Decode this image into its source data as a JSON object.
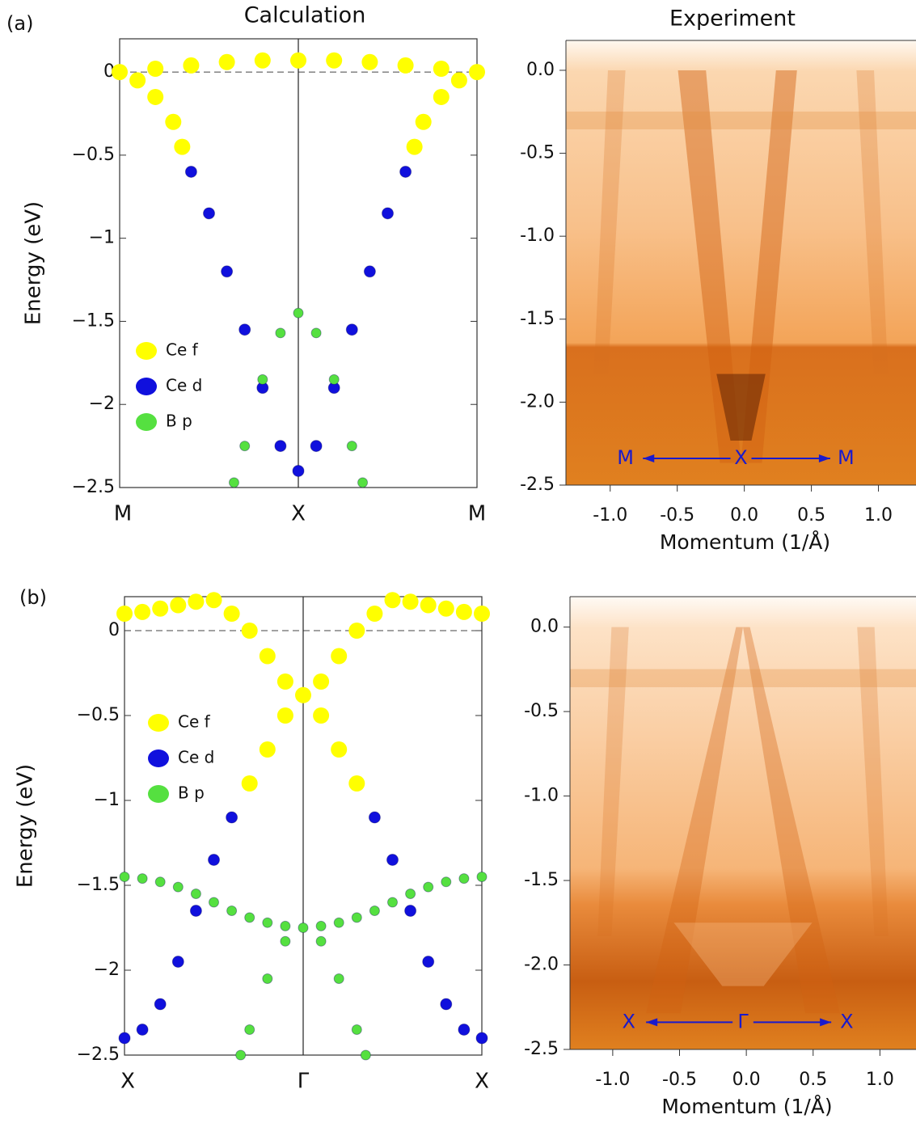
{
  "panel_labels": [
    "(a)",
    "(b)"
  ],
  "column_titles": [
    "Calculation",
    "Experiment"
  ],
  "chart_data": [
    {
      "type": "scatter",
      "ylabel": "Energy (eV)",
      "xlim": [
        0,
        2
      ],
      "ylim": [
        -2.5,
        0.2
      ],
      "xticks": [
        {
          "value": 0,
          "label": "M"
        },
        {
          "value": 1,
          "label": "X"
        },
        {
          "value": 2,
          "label": "M"
        }
      ],
      "yticks": [
        {
          "value": -2.5,
          "label": "−2.5"
        },
        {
          "value": -2,
          "label": "−2"
        },
        {
          "value": -1.5,
          "label": "−1.5"
        },
        {
          "value": -1,
          "label": "−1"
        },
        {
          "value": -0.5,
          "label": "−0.5"
        },
        0
      ],
      "fermi_line": true,
      "series": [
        {
          "name": "Ce f",
          "color": "#ffff00",
          "x": [
            0,
            0.2,
            0.4,
            0.6,
            0.8,
            1.0,
            1.2,
            1.4,
            1.6,
            1.8,
            2.0,
            0.1,
            0.2,
            0.3,
            0.35,
            1.65,
            1.7,
            1.8,
            1.9
          ],
          "values": [
            0,
            0.02,
            0.04,
            0.06,
            0.07,
            0.07,
            0.07,
            0.06,
            0.04,
            0.02,
            0,
            -0.05,
            -0.15,
            -0.3,
            -0.45,
            -0.45,
            -0.3,
            -0.15,
            -0.05
          ]
        },
        {
          "name": "Ce d",
          "color": "#1010dd",
          "x": [
            0.4,
            0.5,
            0.6,
            0.7,
            0.8,
            0.9,
            1.0,
            1.1,
            1.2,
            1.3,
            1.4,
            1.5,
            1.6
          ],
          "values": [
            -0.6,
            -0.85,
            -1.2,
            -1.55,
            -1.9,
            -2.25,
            -2.4,
            -2.25,
            -1.9,
            -1.55,
            -1.2,
            -0.85,
            -0.6
          ]
        },
        {
          "name": "B p",
          "color": "#55e040",
          "x": [
            0.64,
            0.7,
            0.8,
            0.9,
            1.0,
            1.1,
            1.2,
            1.3,
            1.36
          ],
          "values": [
            -2.47,
            -2.25,
            -1.85,
            -1.57,
            -1.45,
            -1.57,
            -1.85,
            -2.25,
            -2.47
          ]
        }
      ]
    },
    {
      "type": "image",
      "xlabel": "Momentum (1/Å)",
      "xlim": [
        -1.33,
        1.28
      ],
      "ylim": [
        -2.5,
        0.18
      ],
      "xticks": [
        {
          "value": -1,
          "label": "-1.0"
        },
        -0.5,
        {
          "value": 0,
          "label": "0.0"
        },
        0.5,
        {
          "value": 1,
          "label": "1.0"
        }
      ],
      "yticks": [
        {
          "value": -2.5,
          "label": "-2.5"
        },
        {
          "value": -2,
          "label": "-2.0"
        },
        -1.5,
        {
          "value": -1,
          "label": "-1.0"
        },
        -0.5,
        {
          "value": 0,
          "label": "0.0"
        }
      ],
      "annotations": [
        "M",
        "X",
        "M"
      ]
    },
    {
      "type": "scatter",
      "ylabel": "Energy (eV)",
      "xlim": [
        0,
        2
      ],
      "ylim": [
        -2.5,
        0.2
      ],
      "xticks": [
        {
          "value": 0,
          "label": "X"
        },
        {
          "value": 1,
          "label": "Γ"
        },
        {
          "value": 2,
          "label": "X"
        }
      ],
      "yticks": [
        {
          "value": -2.5,
          "label": "−2.5"
        },
        {
          "value": -2,
          "label": "−2"
        },
        {
          "value": -1.5,
          "label": "−1.5"
        },
        {
          "value": -1,
          "label": "−1"
        },
        {
          "value": -0.5,
          "label": "−0.5"
        },
        0
      ],
      "fermi_line": true,
      "series": [
        {
          "name": "Ce f",
          "color": "#ffff00",
          "x": [
            0,
            0.1,
            0.2,
            0.3,
            0.4,
            0.5,
            0.6,
            0.7,
            0.8,
            0.9,
            1.0,
            0.9,
            0.8,
            0.7,
            1.1,
            1.2,
            1.3,
            1.1,
            1.2,
            1.3,
            1.4,
            1.5,
            1.6,
            1.7,
            1.8,
            1.9,
            2.0
          ],
          "values": [
            0.1,
            0.11,
            0.13,
            0.15,
            0.17,
            0.18,
            0.1,
            0,
            -0.15,
            -0.3,
            -0.38,
            -0.5,
            -0.7,
            -0.9,
            -0.5,
            -0.7,
            -0.9,
            -0.3,
            -0.15,
            0,
            0.1,
            0.18,
            0.17,
            0.15,
            0.13,
            0.11,
            0.1
          ]
        },
        {
          "name": "Ce d",
          "color": "#1010dd",
          "x": [
            0,
            0.1,
            0.2,
            0.3,
            0.4,
            0.5,
            0.6,
            1.4,
            1.5,
            1.6,
            1.7,
            1.8,
            1.9,
            2.0
          ],
          "values": [
            -2.4,
            -2.35,
            -2.2,
            -1.95,
            -1.65,
            -1.35,
            -1.1,
            -1.1,
            -1.35,
            -1.65,
            -1.95,
            -2.2,
            -2.35,
            -2.4
          ]
        },
        {
          "name": "B p",
          "color": "#55e040",
          "x": [
            0,
            0.1,
            0.2,
            0.3,
            0.4,
            0.5,
            0.6,
            0.7,
            0.8,
            0.9,
            1.0,
            1.1,
            1.2,
            1.3,
            1.4,
            1.5,
            1.6,
            1.7,
            1.8,
            1.9,
            2.0,
            0.65,
            0.7,
            0.8,
            0.9,
            1.1,
            1.2,
            1.3,
            1.35
          ],
          "values": [
            -1.45,
            -1.46,
            -1.48,
            -1.51,
            -1.55,
            -1.6,
            -1.65,
            -1.69,
            -1.72,
            -1.74,
            -1.75,
            -1.74,
            -1.72,
            -1.69,
            -1.65,
            -1.6,
            -1.55,
            -1.51,
            -1.48,
            -1.46,
            -1.45,
            -2.5,
            -2.35,
            -2.05,
            -1.83,
            -1.83,
            -2.05,
            -2.35,
            -2.5
          ]
        }
      ]
    },
    {
      "type": "image",
      "xlabel": "Momentum (1/Å)",
      "xlim": [
        -1.32,
        1.27
      ],
      "ylim": [
        -2.5,
        0.18
      ],
      "xticks": [
        {
          "value": -1,
          "label": "-1.0"
        },
        -0.5,
        {
          "value": 0,
          "label": "0.0"
        },
        0.5,
        {
          "value": 1,
          "label": "1.0"
        }
      ],
      "yticks": [
        {
          "value": -2.5,
          "label": "-2.5"
        },
        {
          "value": -2,
          "label": "-2.0"
        },
        -1.5,
        {
          "value": -1,
          "label": "-1.0"
        },
        -0.5,
        {
          "value": 0,
          "label": "0.0"
        }
      ],
      "annotations": [
        "X",
        "Γ",
        "X"
      ]
    }
  ]
}
